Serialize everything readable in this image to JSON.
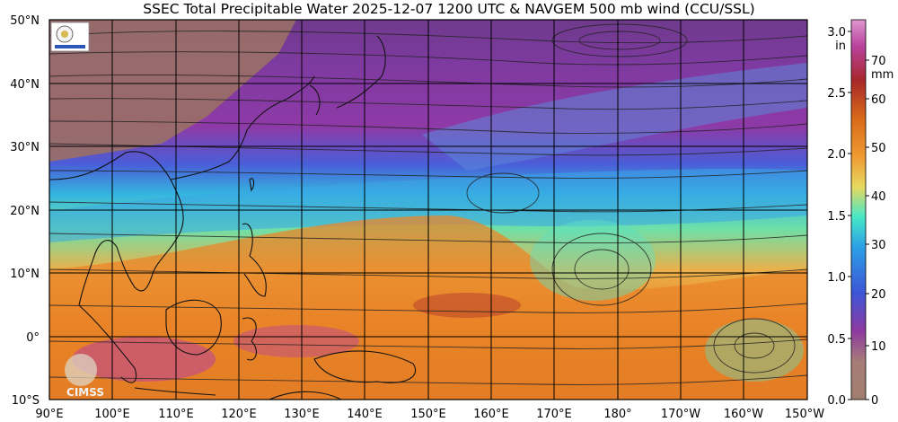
{
  "title": "SSEC Total Precipitable Water  2025-12-07 1200 UTC & NAVGEM 500 mb wind (CCU/SSL)",
  "lat_labels": [
    "50°N",
    "40°N",
    "30°N",
    "20°N",
    "10°N",
    "0°",
    "10°S"
  ],
  "lon_labels": [
    "90°E",
    "100°E",
    "110°E",
    "120°E",
    "130°E",
    "140°E",
    "150°E",
    "160°E",
    "170°E",
    "180°",
    "170°W",
    "160°W",
    "150°W"
  ],
  "colorbar": {
    "inch_unit": "in",
    "mm_unit": "mm",
    "inch_ticks": [
      "3.0",
      "2.5",
      "2.0",
      "1.5",
      "1.0",
      "0.5",
      "0.0"
    ],
    "mm_ticks": [
      "70",
      "60",
      "50",
      "40",
      "30",
      "20",
      "10",
      "0"
    ],
    "colors": [
      "#a07e6e",
      "#8e3aa0",
      "#3d55d6",
      "#2c9fe6",
      "#46e8c8",
      "#e8d860",
      "#ef9a32",
      "#d86a18",
      "#a8282a",
      "#b8429c",
      "#e098d0"
    ]
  },
  "logos": {
    "cimss": "CIMSS"
  }
}
